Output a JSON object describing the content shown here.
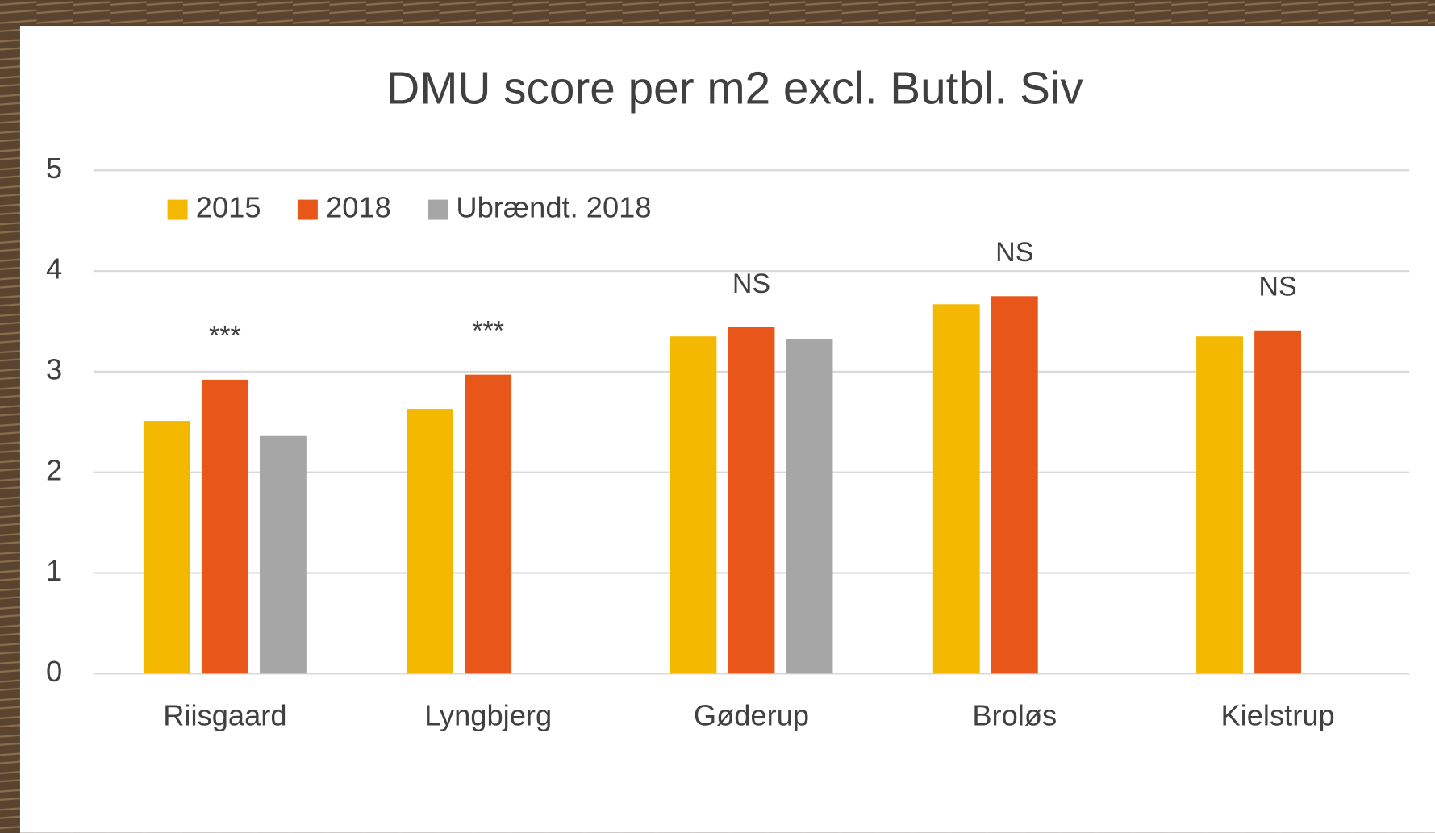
{
  "chart_data": {
    "type": "bar",
    "title": "DMU score per m2 excl. Butbl. Siv",
    "categories": [
      "Riisgaard",
      "Lyngbjerg",
      "Gøderup",
      "Broløs",
      "Kielstrup"
    ],
    "series": [
      {
        "name": "2015",
        "color": "#f4b800",
        "values": [
          2.51,
          2.63,
          3.35,
          3.67,
          3.35
        ]
      },
      {
        "name": "2018",
        "color": "#e8561a",
        "values": [
          2.92,
          2.97,
          3.44,
          3.75,
          3.41
        ]
      },
      {
        "name": "Ubrændt. 2018",
        "color": "#a6a6a6",
        "values": [
          2.36,
          null,
          3.32,
          null,
          null
        ]
      }
    ],
    "annotations": [
      "***",
      "***",
      "NS",
      "NS",
      "NS"
    ],
    "ylim": [
      0,
      5
    ],
    "yticks": [
      0,
      1,
      2,
      3,
      4,
      5
    ],
    "grid": true
  }
}
